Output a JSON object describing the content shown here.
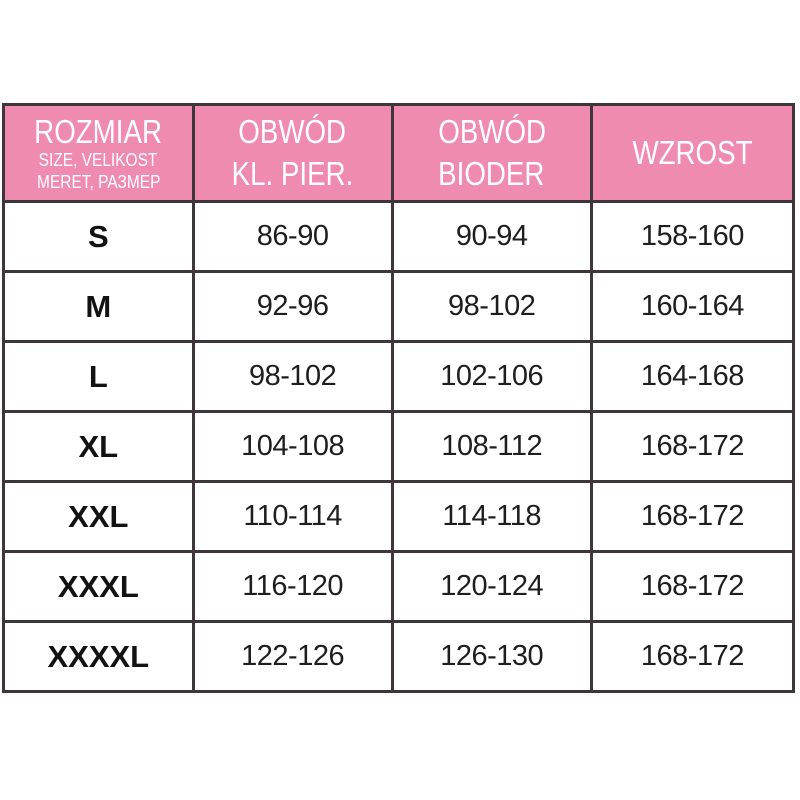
{
  "table": {
    "header": {
      "col1": {
        "title": "ROZMIAR",
        "sub1": "SIZE, VELIKOST",
        "sub2": "MERET, РАЗМЕР"
      },
      "col2": {
        "line1": "OBWÓD",
        "line2": "KL. PIER."
      },
      "col3": {
        "line1": "OBWÓD",
        "line2": "BIODER"
      },
      "col4": {
        "line1": "WZROST"
      }
    },
    "rows": [
      {
        "size": "S",
        "chest": "86-90",
        "hips": "90-94",
        "height": "158-160"
      },
      {
        "size": "M",
        "chest": "92-96",
        "hips": "98-102",
        "height": "160-164"
      },
      {
        "size": "L",
        "chest": "98-102",
        "hips": "102-106",
        "height": "164-168"
      },
      {
        "size": "XL",
        "chest": "104-108",
        "hips": "108-112",
        "height": "168-172"
      },
      {
        "size": "XXL",
        "chest": "110-114",
        "hips": "114-118",
        "height": "168-172"
      },
      {
        "size": "XXXL",
        "chest": "116-120",
        "hips": "120-124",
        "height": "168-172"
      },
      {
        "size": "XXXXL",
        "chest": "122-126",
        "hips": "126-130",
        "height": "168-172"
      }
    ]
  },
  "colors": {
    "header_background": "#ef8bb1",
    "header_text": "#ffffff",
    "border": "#3e363b",
    "cell_text": "#1e1e1e",
    "page_background": "#ffffff"
  },
  "chart_data": {
    "type": "table",
    "title": "Size chart (clothing measurements, cm)",
    "columns": [
      "ROZMIAR (SIZE, VELIKOST, MERET, РАЗМЕР)",
      "OBWÓD KL. PIER.",
      "OBWÓD BIODER",
      "WZROST"
    ],
    "rows": [
      [
        "S",
        "86-90",
        "90-94",
        "158-160"
      ],
      [
        "M",
        "92-96",
        "98-102",
        "160-164"
      ],
      [
        "L",
        "98-102",
        "102-106",
        "164-168"
      ],
      [
        "XL",
        "104-108",
        "108-112",
        "168-172"
      ],
      [
        "XXL",
        "110-114",
        "114-118",
        "168-172"
      ],
      [
        "XXXL",
        "116-120",
        "120-124",
        "168-172"
      ],
      [
        "XXXXL",
        "122-126",
        "126-130",
        "168-172"
      ]
    ]
  }
}
